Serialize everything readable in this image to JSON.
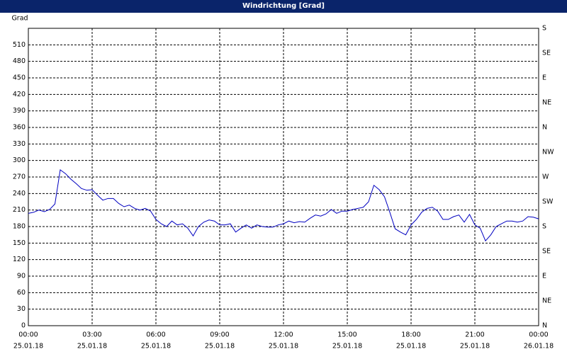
{
  "chart_data": {
    "type": "line",
    "title": "Windrichtung [Grad]",
    "y_label": "Grad",
    "color": "#0000c0",
    "grid": true,
    "xlim": [
      0,
      24
    ],
    "xticks": [
      {
        "value": 0,
        "label": "00:00",
        "date": "25.01.18"
      },
      {
        "value": 3,
        "label": "03:00",
        "date": "25.01.18"
      },
      {
        "value": 6,
        "label": "06:00",
        "date": "25.01.18"
      },
      {
        "value": 9,
        "label": "09:00",
        "date": "25.01.18"
      },
      {
        "value": 12,
        "label": "12:00",
        "date": "25.01.18"
      },
      {
        "value": 15,
        "label": "15:00",
        "date": "25.01.18"
      },
      {
        "value": 18,
        "label": "18:00",
        "date": "25.01.18"
      },
      {
        "value": 21,
        "label": "21:00",
        "date": "25.01.18"
      },
      {
        "value": 24,
        "label": "00:00",
        "date": "26.01.18"
      }
    ],
    "ylim": [
      0,
      540
    ],
    "yticks": [
      0,
      30,
      60,
      90,
      120,
      150,
      180,
      210,
      240,
      270,
      300,
      330,
      360,
      390,
      420,
      450,
      480,
      510
    ],
    "y2lim": [
      0,
      540
    ],
    "y2ticks": [
      {
        "value": 0,
        "label": "N"
      },
      {
        "value": 45,
        "label": "NE"
      },
      {
        "value": 90,
        "label": "E"
      },
      {
        "value": 135,
        "label": "SE"
      },
      {
        "value": 180,
        "label": "S"
      },
      {
        "value": 225,
        "label": "SW"
      },
      {
        "value": 270,
        "label": "W"
      },
      {
        "value": 315,
        "label": "NW"
      },
      {
        "value": 360,
        "label": "N"
      },
      {
        "value": 405,
        "label": "NE"
      },
      {
        "value": 450,
        "label": "E"
      },
      {
        "value": 495,
        "label": "SE"
      },
      {
        "value": 540,
        "label": "S"
      }
    ],
    "x": [
      0,
      0.25,
      0.5,
      0.75,
      1,
      1.25,
      1.5,
      1.75,
      2,
      2.25,
      2.5,
      2.75,
      3,
      3.25,
      3.5,
      3.75,
      4,
      4.25,
      4.5,
      4.75,
      5,
      5.25,
      5.5,
      5.75,
      6,
      6.25,
      6.5,
      6.75,
      7,
      7.25,
      7.5,
      7.75,
      8,
      8.25,
      8.5,
      8.75,
      9,
      9.25,
      9.5,
      9.75,
      10,
      10.25,
      10.5,
      10.75,
      11,
      11.25,
      11.5,
      11.75,
      12,
      12.25,
      12.5,
      12.75,
      13,
      13.25,
      13.5,
      13.75,
      14,
      14.25,
      14.5,
      14.75,
      15,
      15.25,
      15.5,
      15.75,
      16,
      16.25,
      16.5,
      16.75,
      17,
      17.25,
      17.5,
      17.75,
      18,
      18.25,
      18.5,
      18.75,
      19,
      19.25,
      19.5,
      19.75,
      20,
      20.25,
      20.5,
      20.75,
      21,
      21.25,
      21.5,
      21.75,
      22,
      22.25,
      22.5,
      22.75,
      23,
      23.25,
      23.5,
      23.75,
      24
    ],
    "values": [
      204,
      206,
      210,
      207,
      211,
      221,
      283,
      276,
      266,
      258,
      249,
      246,
      247,
      237,
      228,
      231,
      231,
      222,
      216,
      219,
      213,
      210,
      213,
      208,
      193,
      185,
      180,
      190,
      183,
      185,
      177,
      163,
      180,
      188,
      192,
      190,
      183,
      183,
      185,
      170,
      177,
      183,
      177,
      183,
      180,
      179,
      179,
      183,
      185,
      190,
      187,
      189,
      188,
      195,
      201,
      199,
      203,
      211,
      204,
      208,
      208,
      211,
      213,
      215,
      225,
      255,
      247,
      234,
      206,
      176,
      170,
      165,
      183,
      193,
      206,
      213,
      215,
      208,
      193,
      193,
      198,
      201,
      188,
      202,
      183,
      177,
      154,
      165,
      180,
      185,
      190,
      190,
      188,
      190,
      198,
      197,
      194
    ]
  }
}
